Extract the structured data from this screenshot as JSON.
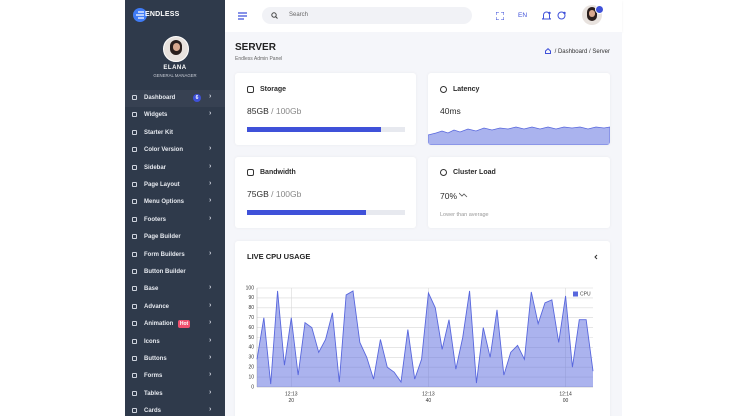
{
  "brand": "ENDLESS",
  "search_placeholder": "Search",
  "language": "EN",
  "profile": {
    "name": "ELANA",
    "role": "GENERAL MANAGER"
  },
  "sidebar": [
    {
      "label": "Dashboard",
      "badge": "6",
      "arrow": true
    },
    {
      "label": "Widgets",
      "arrow": true
    },
    {
      "label": "Starter Kit",
      "arrow": false
    },
    {
      "label": "Color Version",
      "arrow": true
    },
    {
      "label": "Sidebar",
      "arrow": true
    },
    {
      "label": "Page Layout",
      "arrow": true
    },
    {
      "label": "Menu Options",
      "arrow": true
    },
    {
      "label": "Footers",
      "arrow": true
    },
    {
      "label": "Page Builder",
      "arrow": false
    },
    {
      "label": "Form Builders",
      "arrow": true
    },
    {
      "label": "Button Builder",
      "arrow": false
    },
    {
      "label": "Base",
      "arrow": true
    },
    {
      "label": "Advance",
      "arrow": true
    },
    {
      "label": "Animation",
      "badge": "Hot",
      "arrow": true
    },
    {
      "label": "Icons",
      "arrow": true
    },
    {
      "label": "Buttons",
      "arrow": true
    },
    {
      "label": "Forms",
      "arrow": true
    },
    {
      "label": "Tables",
      "arrow": true
    },
    {
      "label": "Cards",
      "arrow": true
    }
  ],
  "page": {
    "title": "SERVER",
    "subtitle": "Endless Admin Panel",
    "breadcrumb": [
      "Dashboard",
      "Server"
    ]
  },
  "cards": [
    {
      "title": "Storage",
      "used": 85,
      "total": 100,
      "value_label": "85GB",
      "total_label": "/ 100Gb"
    },
    {
      "title": "Latency",
      "value_label": "40ms"
    },
    {
      "title": "Bandwidth",
      "used": 75,
      "total": 100,
      "value_label": "75GB",
      "total_label": "/ 100Gb"
    },
    {
      "title": "Cluster Load",
      "value_label": "70%",
      "note": "Lower than average"
    }
  ],
  "chart_data": {
    "type": "area",
    "title": "LIVE CPU USAGE",
    "categories": [
      null,
      null,
      null,
      null,
      null,
      [
        "12:13",
        "20"
      ],
      null,
      null,
      null,
      null,
      null,
      null,
      null,
      null,
      null,
      null,
      null,
      null,
      null,
      null,
      null,
      null,
      null,
      null,
      null,
      [
        "12:13",
        "40"
      ],
      null,
      null,
      null,
      null,
      null,
      null,
      null,
      null,
      null,
      null,
      null,
      null,
      null,
      null,
      null,
      null,
      null,
      null,
      null,
      [
        "12:14",
        "00"
      ],
      null,
      null,
      null,
      null
    ],
    "series": [
      {
        "name": "CPU",
        "color": "#5867dd",
        "values": [
          28,
          70,
          3,
          97,
          22,
          70,
          12,
          65,
          60,
          35,
          48,
          75,
          5,
          93,
          97,
          45,
          30,
          8,
          48,
          20,
          15,
          5,
          58,
          8,
          28,
          95,
          80,
          38,
          68,
          18,
          50,
          97,
          4,
          60,
          30,
          78,
          12,
          35,
          42,
          28,
          96,
          64,
          85,
          88,
          45,
          92,
          20,
          68,
          68,
          16
        ]
      }
    ],
    "ylim": [
      0,
      100
    ],
    "yticks": [
      0,
      10,
      20,
      30,
      40,
      50,
      60,
      70,
      80,
      90,
      100
    ],
    "grid": true,
    "legend": "top-right"
  }
}
